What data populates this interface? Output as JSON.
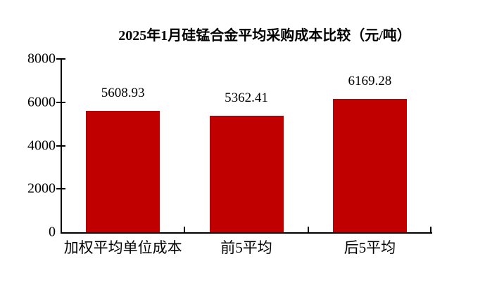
{
  "chart_data": {
    "type": "bar",
    "title": "2025年1月硅锰合金平均采购成本比较（元/吨）",
    "categories": [
      "加权平均单位成本",
      "前5平均",
      "后5平均"
    ],
    "values": [
      5608.93,
      5362.41,
      6169.28
    ],
    "value_labels": [
      "5608.93",
      "5362.41",
      "6169.28"
    ],
    "xlabel": "",
    "ylabel": "",
    "ylim": [
      0,
      8000
    ],
    "yticks": [
      "0",
      "2000",
      "4000",
      "6000",
      "8000"
    ],
    "grid": false,
    "legend": false,
    "bar_color": "#c00000",
    "axis_color": "#000000",
    "text_color": "#000000",
    "background_color": "#ffffff"
  }
}
